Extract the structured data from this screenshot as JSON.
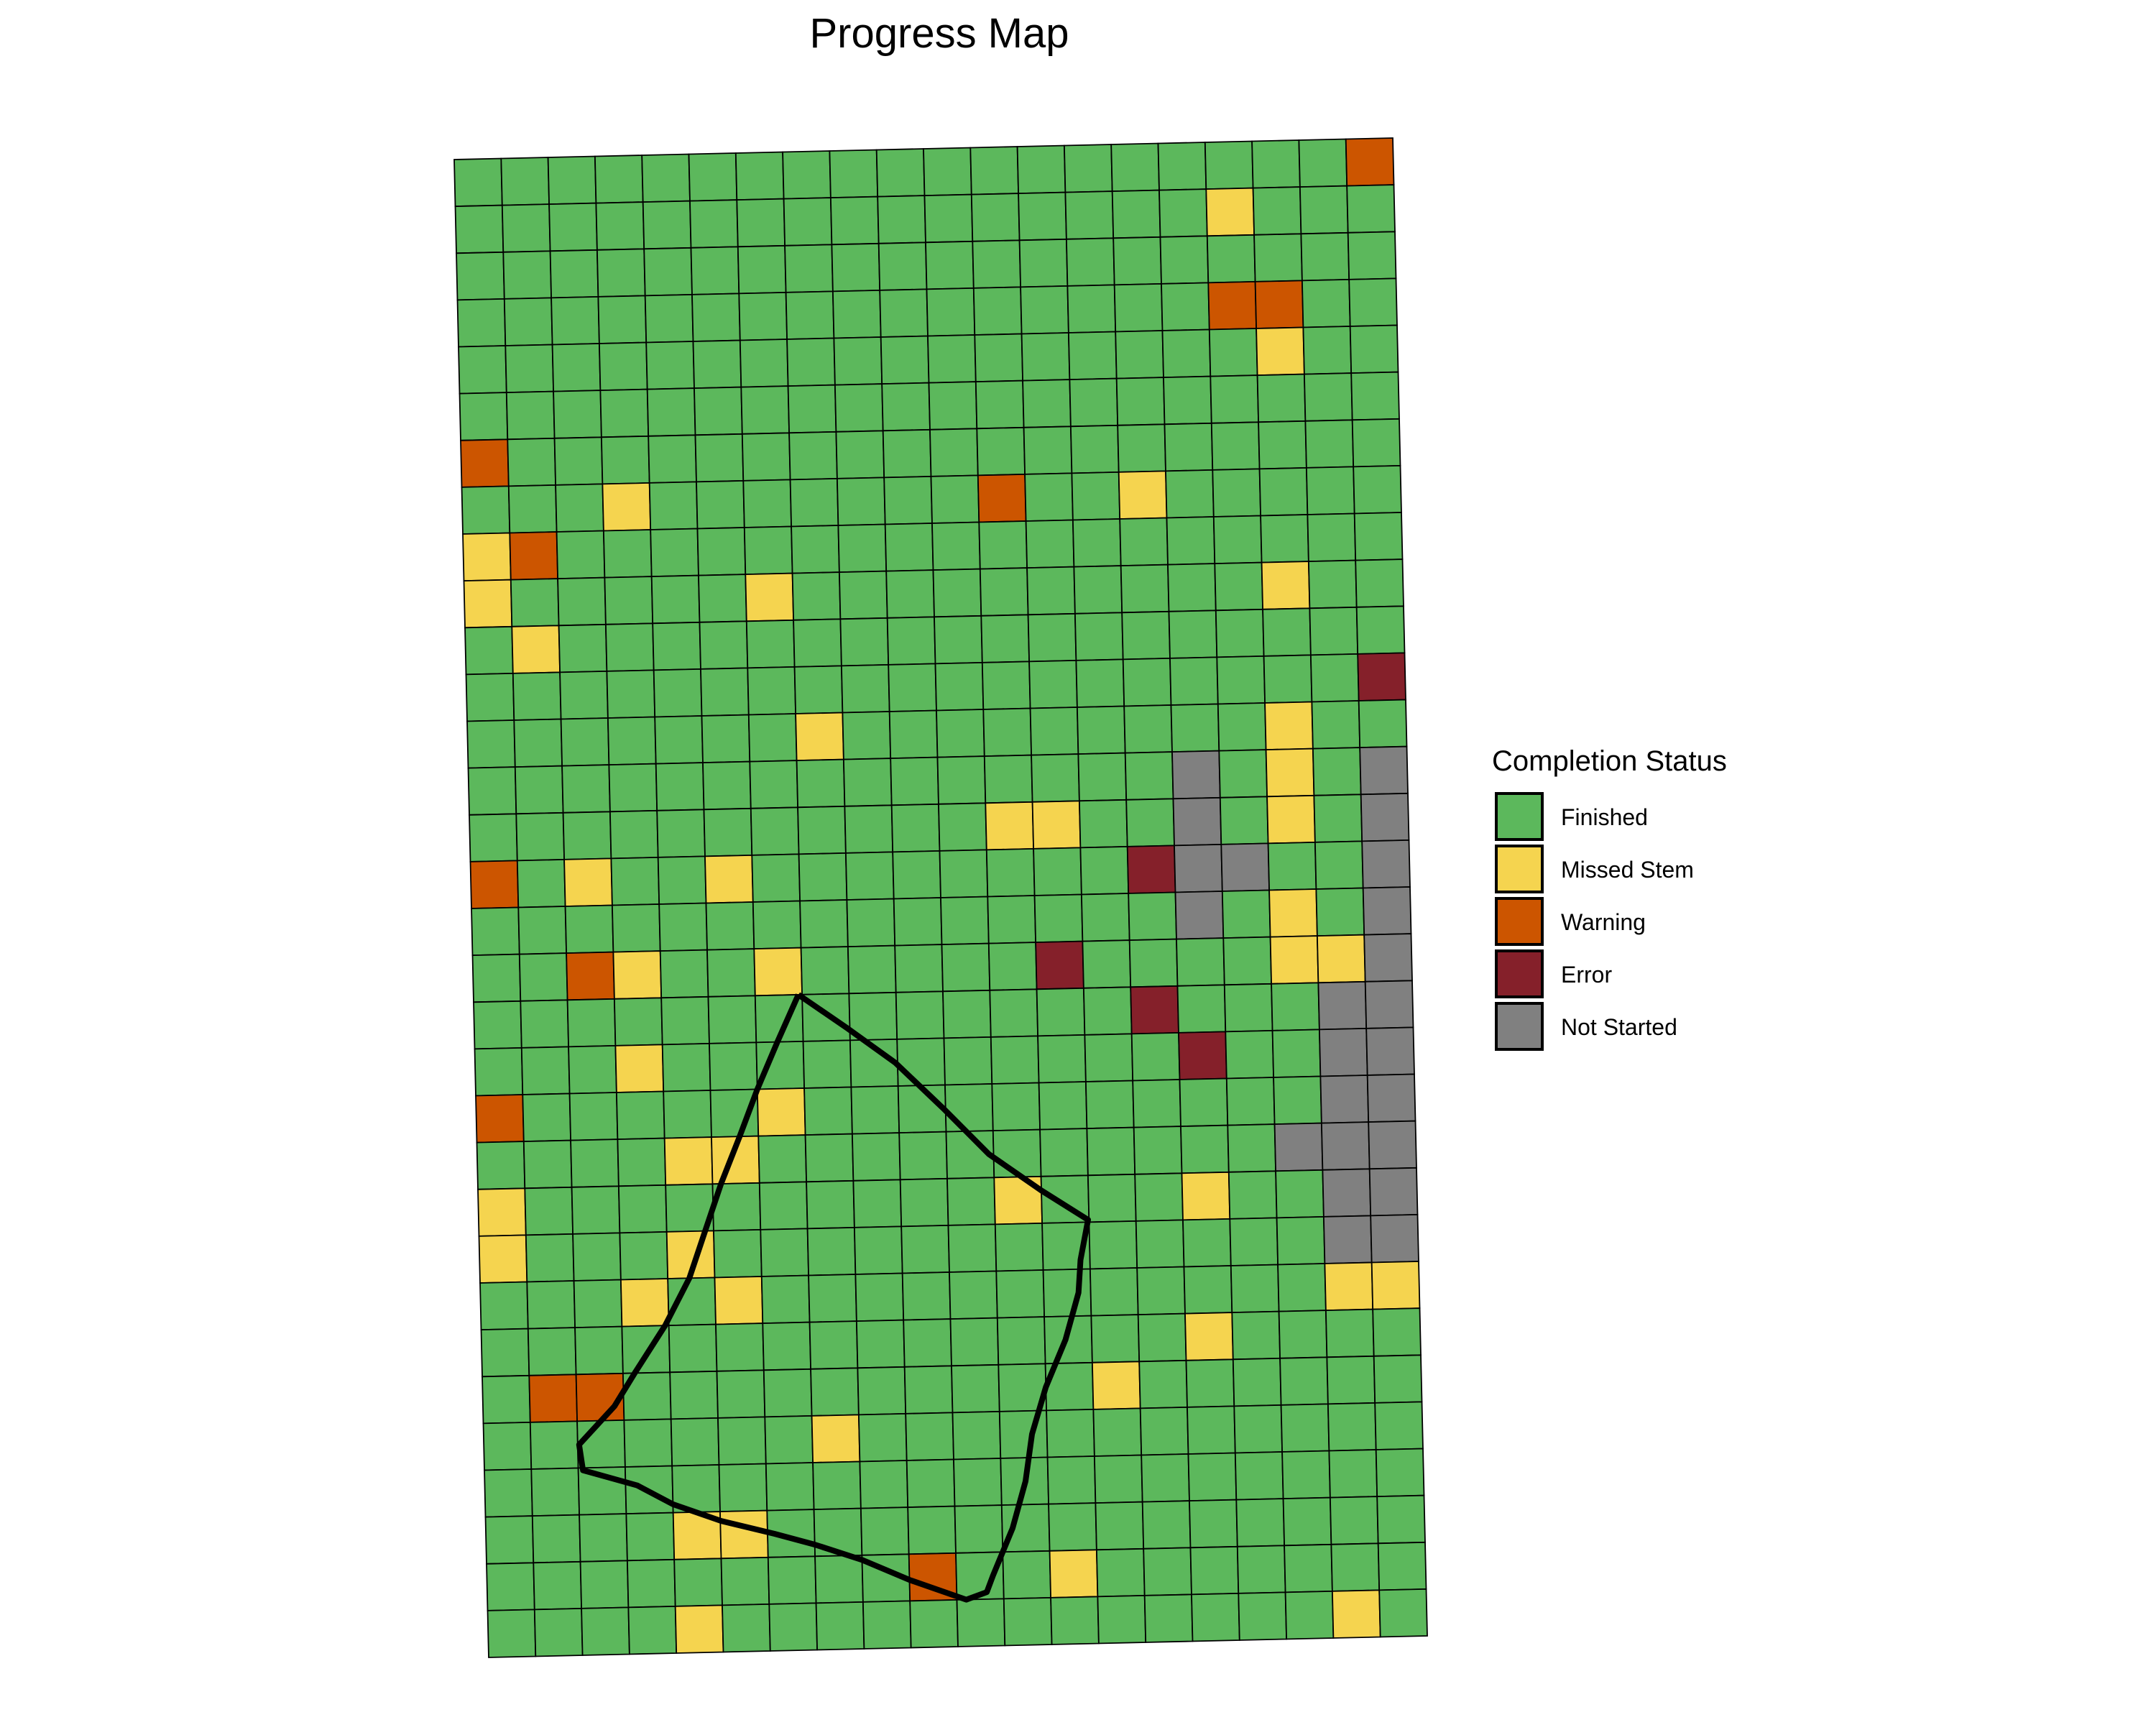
{
  "chart_data": {
    "type": "heatmap",
    "title": "Progress Map",
    "xlabel": "",
    "ylabel": "",
    "grid": "on",
    "legend_position": "right",
    "legend": {
      "title": "Completion Status",
      "entries": [
        {
          "code": "F",
          "label": "Finished",
          "color": "#5cb85c"
        },
        {
          "code": "M",
          "label": "Missed Stem",
          "color": "#f5d44f"
        },
        {
          "code": "W",
          "label": "Warning",
          "color": "#cc5500"
        },
        {
          "code": "E",
          "label": "Error",
          "color": "#85202a"
        },
        {
          "code": "N",
          "label": "Not Started",
          "color": "#808080"
        }
      ]
    },
    "columns": 20,
    "rows": 32,
    "cells": [
      "FFFFFFFFFFFFFFFFFFFW",
      "FFFFFFFFFFFFFFFFMFFF",
      "FFFFFFFFFFFFFFFFFFFF",
      "FFFFFFFFFFFFFFFFWWFF",
      "FFFFFFFFFFFFFFFFFMFF",
      "FFFFFFFFFFFFFFFFFFFF",
      "WFFFFFFFFFFFFFFFFFFF",
      "FFFMFFFFFFFWFFMFFFFF",
      "MWFFFFFFFFFFFFFFFFFF",
      "MFFFFFMFFFFFFFFFFMFF",
      "FMFFFFFFFFFFFFFFFFFF",
      "FFFFFFFFFFFFFFFFFFFE",
      "FFFFFFFMFFFFFFFFFMFF",
      "FFFFFFFFFFFFFFFNFMFN",
      "FFFFFFFFFFFMMFFNFMFN",
      "WFMFFMFFFFFFFFENNFFN",
      "FFFFFFFFFFFFFFFNFMFN",
      "FFWMFFMFFFFFEFFFFMMN",
      "FFFFFFFFFFFFFFEFFFNN",
      "FFFMFFFFFFFFFFFEFFNN",
      "WFFFFFMFFFFFFFFFFFNN",
      "FFFFMMFFFFFFFFFFFNNN",
      "MFFFFFFFFFFMFFFMFFNN",
      "MFFFMFFFFFFFFFFFFFNN",
      "FFFMFMFFFFFFFFFFFFMM",
      "FFFFFFFFFFFFFFFMFFFF",
      "FWWFFFFFFFFFFMFFFFFF",
      "FFFFFFFMFFFFFFFFFFFF",
      "FFFFFFFFFFFFFFFFFFFF",
      "FFFFMMFFFFFFFFFFFFFF",
      "FFFFFFFFFWFFMFFFFFFF",
      "FFFFMFFFFFFFFFFFFFMF"
    ],
    "boundary": [
      [
        6.92,
        18.0
      ],
      [
        7.96,
        18.75
      ],
      [
        8.95,
        19.5
      ],
      [
        9.95,
        20.5
      ],
      [
        10.9,
        21.5
      ],
      [
        12.0,
        22.3
      ],
      [
        12.98,
        22.95
      ],
      [
        12.8,
        23.8
      ],
      [
        12.74,
        24.5
      ],
      [
        12.44,
        25.5
      ],
      [
        12.0,
        26.5
      ],
      [
        11.68,
        27.5
      ],
      [
        11.52,
        28.5
      ],
      [
        11.22,
        29.5
      ],
      [
        10.78,
        30.5
      ],
      [
        10.64,
        30.85
      ],
      [
        10.2,
        31.0
      ],
      [
        9.0,
        30.55
      ],
      [
        8.0,
        30.1
      ],
      [
        7.0,
        29.75
      ],
      [
        6.15,
        29.5
      ],
      [
        5.02,
        29.2
      ],
      [
        4.0,
        28.82
      ],
      [
        3.25,
        28.4
      ],
      [
        2.1,
        28.05
      ],
      [
        2.03,
        27.5
      ],
      [
        2.8,
        26.7
      ],
      [
        3.25,
        26.0
      ],
      [
        3.92,
        25.0
      ],
      [
        4.46,
        24.0
      ],
      [
        4.82,
        23.0
      ],
      [
        5.18,
        22.0
      ],
      [
        5.6,
        21.0
      ],
      [
        6.0,
        20.0
      ],
      [
        6.45,
        19.0
      ]
    ]
  }
}
